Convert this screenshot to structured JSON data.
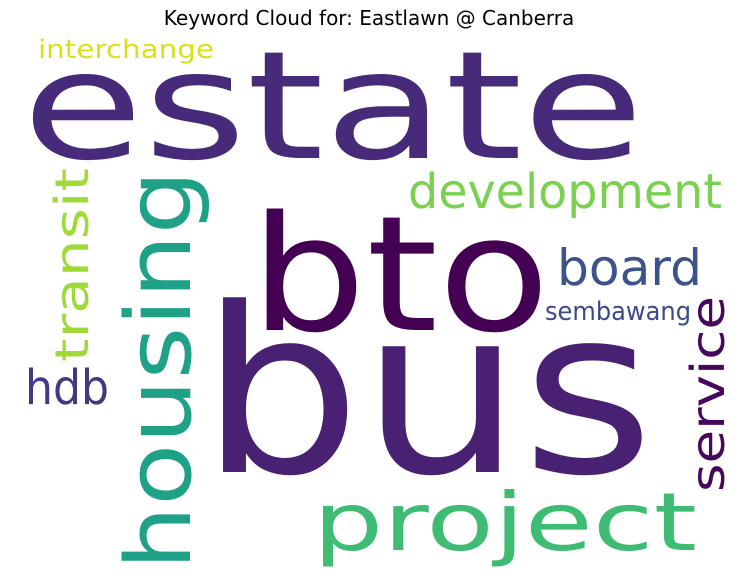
{
  "title": "Keyword Cloud for: Eastlawn @ Canberra",
  "words": [
    {
      "text": "bus",
      "color": "#482173"
    },
    {
      "text": "estate",
      "color": "#472b7a"
    },
    {
      "text": "bto",
      "color": "#440154"
    },
    {
      "text": "housing",
      "color": "#1fa187"
    },
    {
      "text": "project",
      "color": "#3fbc73"
    },
    {
      "text": "development",
      "color": "#7ad151"
    },
    {
      "text": "board",
      "color": "#3b528b"
    },
    {
      "text": "transit",
      "color": "#a0da39"
    },
    {
      "text": "service",
      "color": "#46085c"
    },
    {
      "text": "hdb",
      "color": "#453781"
    },
    {
      "text": "sembawang",
      "color": "#3e4989"
    },
    {
      "text": "interchange",
      "color": "#d8e219"
    }
  ]
}
